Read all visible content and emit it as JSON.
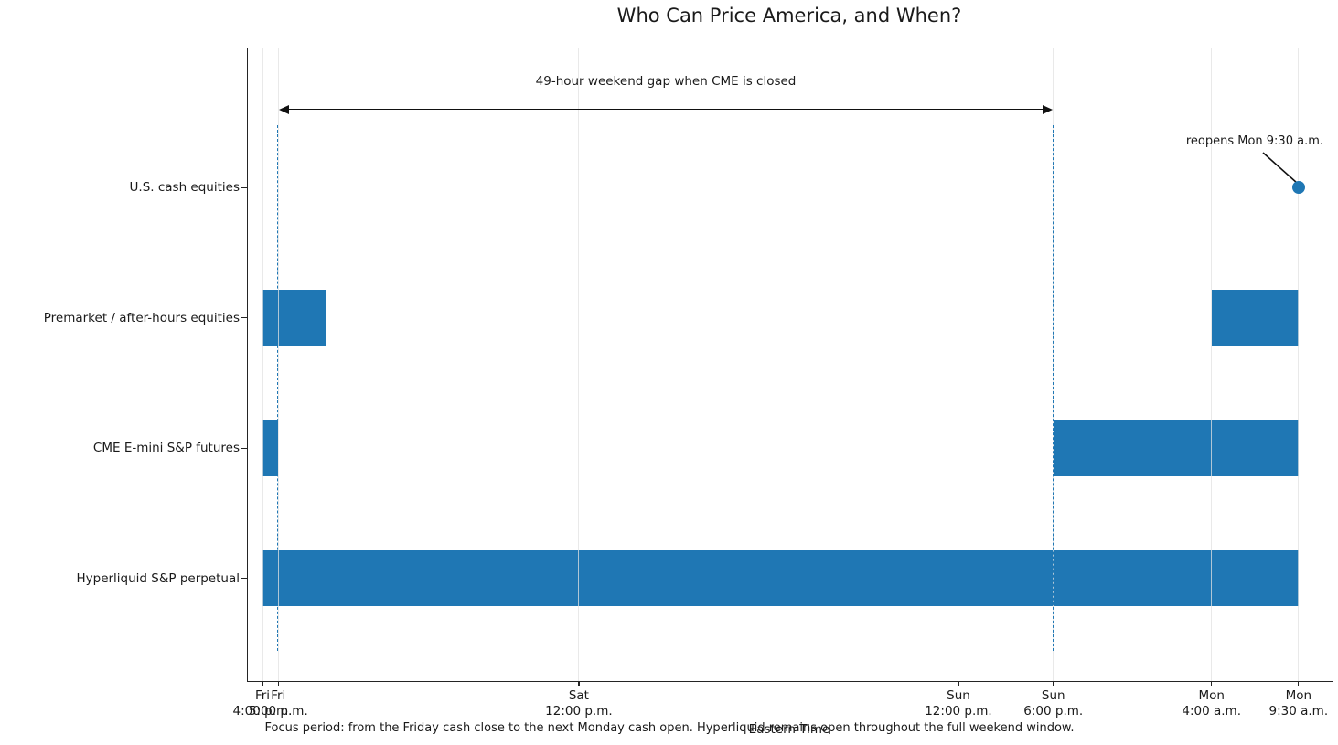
{
  "chart_data": {
    "type": "bar",
    "subtype": "horizontal_interval_timeline",
    "title": "Who Can Price America, and When?",
    "xlabel": "Eastern Time",
    "caption": "Focus period: from the Friday cash close to the next Monday cash open. Hyperliquid remains open throughout the full weekend window.",
    "x_unit": "hours after Friday 4:00 p.m. ET",
    "xlim": [
      -1,
      67.6
    ],
    "grid": "vertical_only",
    "legend": "none",
    "categories": [
      "U.S. cash equities",
      "Premarket / after-hours equities",
      "CME E-mini S&P futures",
      "Hyperliquid S&P perpetual"
    ],
    "rows": [
      {
        "label": "U.S. cash equities",
        "intervals": [],
        "point": {
          "t": 65.5
        }
      },
      {
        "label": "Premarket / after-hours equities",
        "intervals": [
          [
            0,
            4
          ],
          [
            60,
            65.5
          ]
        ]
      },
      {
        "label": "CME E-mini S&P futures",
        "intervals": [
          [
            0,
            1
          ],
          [
            50,
            65.5
          ]
        ]
      },
      {
        "label": "Hyperliquid S&P perpetual",
        "intervals": [
          [
            0,
            65.5
          ]
        ]
      }
    ],
    "x_ticks": [
      {
        "t": 0,
        "line1": "Fri",
        "line2": "4:00 p.m."
      },
      {
        "t": 1,
        "line1": "Fri",
        "line2": "5:00 p.m."
      },
      {
        "t": 20,
        "line1": "Sat",
        "line2": "12:00 p.m."
      },
      {
        "t": 44,
        "line1": "Sun",
        "line2": "12:00 p.m."
      },
      {
        "t": 50,
        "line1": "Sun",
        "line2": "6:00 p.m."
      },
      {
        "t": 60,
        "line1": "Mon",
        "line2": "4:00 a.m."
      },
      {
        "t": 65.5,
        "line1": "Mon",
        "line2": "9:30 a.m."
      }
    ],
    "dashed_vlines": [
      1,
      50
    ],
    "annotations": {
      "gap": {
        "label": "49-hour weekend gap when CME is closed",
        "from_t": 1,
        "to_t": 50
      },
      "reopen": {
        "label": "reopens Mon 9:30 a.m.",
        "target_t": 65.5,
        "target_row": "U.S. cash equities"
      }
    },
    "colors": {
      "bar": "#1f77b4",
      "marker": "#1f77b4",
      "vline": "#1f77b4",
      "grid": "#e1e1e1",
      "axis": "#242424",
      "arrow": "#111111",
      "text": "#1a1a1a"
    }
  }
}
